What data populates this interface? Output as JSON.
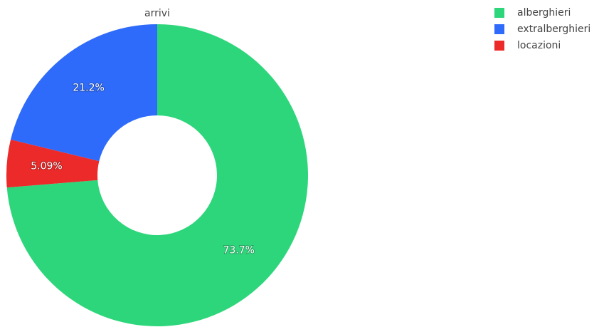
{
  "chart_data": {
    "type": "pie",
    "title": "arrivi",
    "categories": [
      "alberghieri",
      "extralberghieri",
      "locazioni"
    ],
    "values": [
      73.7,
      21.2,
      5.09
    ],
    "value_labels": [
      "73.7%",
      "21.2%",
      "5.09%"
    ],
    "colors": [
      "#2ed67b",
      "#2f6bfa",
      "#ec2a2a"
    ],
    "hole": true,
    "legend": "top-right"
  }
}
